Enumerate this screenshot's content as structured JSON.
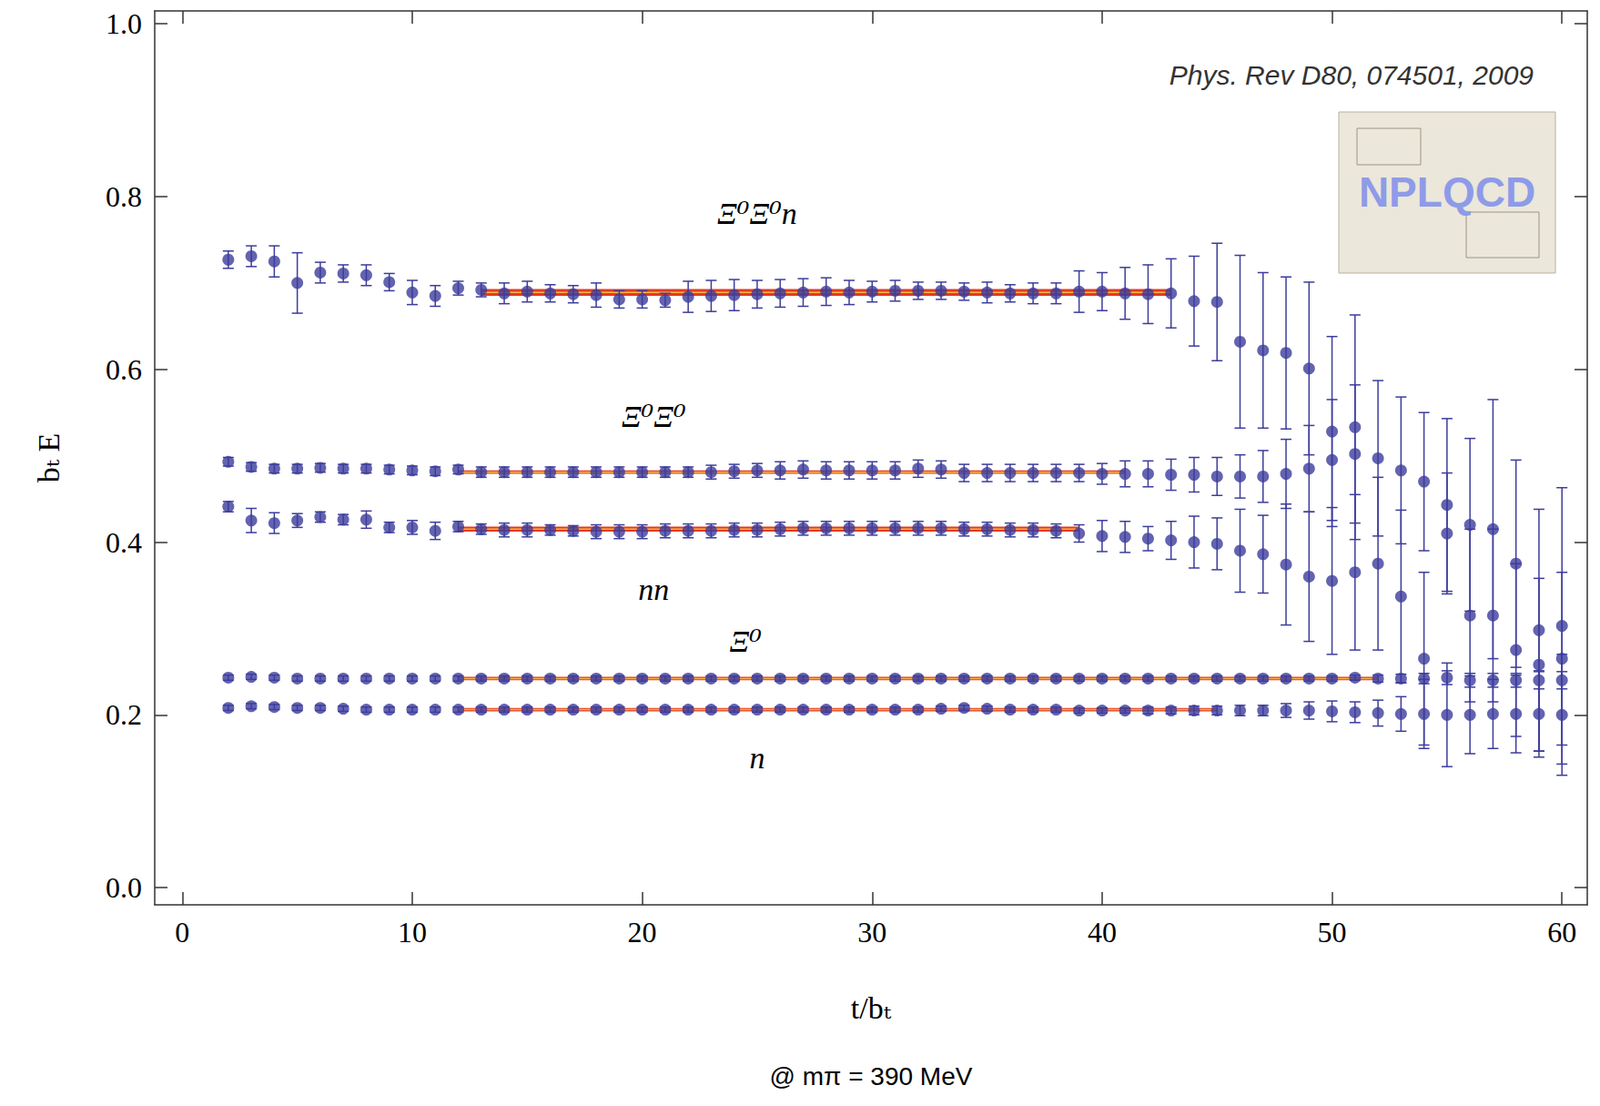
{
  "chart_data": {
    "type": "scatter",
    "title": "Phys. Rev D80, 074501, 2009",
    "subtitle": "@ mπ = 390 MeV",
    "logo": "NPLQCD",
    "xlabel": "t/bₜ",
    "ylabel": "bₜ E",
    "xlim": [
      -1.2,
      61.1
    ],
    "ylim": [
      -0.02,
      1.015
    ],
    "xticks": [
      0,
      10,
      20,
      30,
      40,
      50,
      60
    ],
    "yticks": [
      {
        "value": 0,
        "label": "0.0"
      },
      0.2,
      0.4,
      0.6,
      0.8,
      {
        "value": 1,
        "label": "1.0"
      }
    ],
    "grid": false,
    "marker": "circle",
    "annotations": [
      {
        "text": "Ξ⁰Ξ⁰n",
        "x": 25,
        "y": 0.78
      },
      {
        "text": "Ξ⁰Ξ⁰",
        "x": 20.5,
        "y": 0.545
      },
      {
        "text": "nn",
        "x": 20.5,
        "y": 0.345
      },
      {
        "text": "Ξ⁰",
        "x": 24.5,
        "y": 0.285
      },
      {
        "text": "n",
        "x": 25,
        "y": 0.15
      }
    ],
    "fits": [
      {
        "series": "Ξ⁰Ξ⁰n",
        "x_range": [
          13,
          43
        ],
        "value": 0.689,
        "error": 0.004,
        "color": "#e23b1f"
      },
      {
        "series": "Ξ⁰Ξ⁰",
        "x_range": [
          12,
          41
        ],
        "value": 0.481,
        "error": 0.002,
        "color": "#e23b1f"
      },
      {
        "series": "nn",
        "x_range": [
          12,
          39
        ],
        "value": 0.415,
        "error": 0.003,
        "color": "#e23b1f"
      },
      {
        "series": "Ξ⁰",
        "x_range": [
          12,
          52
        ],
        "value": 0.242,
        "error": 0.002,
        "color": "#e23b1f"
      },
      {
        "series": "n",
        "x_range": [
          12,
          45
        ],
        "value": 0.206,
        "error": 0.002,
        "color": "#e23b1f"
      }
    ],
    "series": [
      {
        "name": "Ξ⁰Ξ⁰n",
        "color": "#3c3c9c",
        "x": [
          2,
          3,
          4,
          5,
          6,
          7,
          8,
          9,
          10,
          11,
          12,
          13,
          14,
          15,
          16,
          17,
          18,
          19,
          20,
          21,
          22,
          23,
          24,
          25,
          26,
          27,
          28,
          29,
          30,
          31,
          32,
          33,
          34,
          35,
          36,
          37,
          38,
          39,
          40,
          41,
          42,
          43,
          44,
          45,
          46,
          47,
          48,
          49,
          50,
          51
        ],
        "values": [
          0.727,
          0.731,
          0.725,
          0.7,
          0.712,
          0.711,
          0.709,
          0.701,
          0.689,
          0.685,
          0.694,
          0.692,
          0.688,
          0.69,
          0.688,
          0.687,
          0.686,
          0.681,
          0.681,
          0.68,
          0.684,
          0.685,
          0.686,
          0.687,
          0.688,
          0.689,
          0.69,
          0.689,
          0.69,
          0.691,
          0.691,
          0.691,
          0.69,
          0.689,
          0.688,
          0.688,
          0.688,
          0.69,
          0.69,
          0.688,
          0.687,
          0.688,
          0.679,
          0.678,
          0.632,
          0.622,
          0.619,
          0.601,
          0.528,
          0.533
        ],
        "errors": [
          0.01,
          0.012,
          0.018,
          0.035,
          0.012,
          0.01,
          0.012,
          0.01,
          0.014,
          0.012,
          0.008,
          0.008,
          0.012,
          0.012,
          0.01,
          0.01,
          0.014,
          0.01,
          0.01,
          0.008,
          0.018,
          0.018,
          0.018,
          0.016,
          0.016,
          0.016,
          0.016,
          0.014,
          0.012,
          0.012,
          0.01,
          0.01,
          0.01,
          0.012,
          0.01,
          0.012,
          0.012,
          0.024,
          0.022,
          0.03,
          0.034,
          0.04,
          0.052,
          0.068,
          0.1,
          0.09,
          0.088,
          0.1,
          0.11,
          0.13
        ]
      },
      {
        "name": "Ξ⁰Ξ⁰",
        "color": "#3c3c9c",
        "x": [
          2,
          3,
          4,
          5,
          6,
          7,
          8,
          9,
          10,
          11,
          12,
          13,
          14,
          15,
          16,
          17,
          18,
          19,
          20,
          21,
          22,
          23,
          24,
          25,
          26,
          27,
          28,
          29,
          30,
          31,
          32,
          33,
          34,
          35,
          36,
          37,
          38,
          39,
          40,
          41,
          42,
          43,
          44,
          45,
          46,
          47,
          48,
          49,
          50,
          51,
          52,
          53,
          54,
          55,
          56,
          57,
          58,
          59,
          60
        ],
        "values": [
          0.493,
          0.487,
          0.485,
          0.485,
          0.486,
          0.485,
          0.485,
          0.484,
          0.483,
          0.482,
          0.484,
          0.481,
          0.481,
          0.481,
          0.481,
          0.481,
          0.481,
          0.481,
          0.481,
          0.481,
          0.481,
          0.481,
          0.482,
          0.483,
          0.483,
          0.484,
          0.483,
          0.483,
          0.483,
          0.483,
          0.485,
          0.484,
          0.48,
          0.48,
          0.48,
          0.48,
          0.48,
          0.48,
          0.479,
          0.479,
          0.479,
          0.478,
          0.478,
          0.476,
          0.476,
          0.476,
          0.479,
          0.485,
          0.495,
          0.502,
          0.497,
          0.483,
          0.47,
          0.443,
          0.42,
          0.415,
          0.375,
          0.298,
          0.303
        ],
        "errors": [
          0.005,
          0.005,
          0.005,
          0.005,
          0.005,
          0.005,
          0.005,
          0.005,
          0.005,
          0.005,
          0.005,
          0.006,
          0.006,
          0.006,
          0.006,
          0.006,
          0.006,
          0.006,
          0.006,
          0.006,
          0.006,
          0.008,
          0.008,
          0.008,
          0.01,
          0.01,
          0.01,
          0.01,
          0.01,
          0.01,
          0.01,
          0.01,
          0.01,
          0.01,
          0.01,
          0.01,
          0.01,
          0.01,
          0.012,
          0.015,
          0.015,
          0.018,
          0.02,
          0.022,
          0.025,
          0.03,
          0.04,
          0.05,
          0.07,
          0.08,
          0.09,
          0.085,
          0.08,
          0.1,
          0.1,
          0.15,
          0.12,
          0.14,
          0.16
        ]
      },
      {
        "name": "nn",
        "color": "#3c3c9c",
        "x": [
          2,
          3,
          4,
          5,
          6,
          7,
          8,
          9,
          10,
          11,
          12,
          13,
          14,
          15,
          16,
          17,
          18,
          19,
          20,
          21,
          22,
          23,
          24,
          25,
          26,
          27,
          28,
          29,
          30,
          31,
          32,
          33,
          34,
          35,
          36,
          37,
          38,
          39,
          40,
          41,
          42,
          43,
          44,
          45,
          46,
          47,
          48,
          49,
          50,
          51,
          52,
          53,
          54,
          55,
          56,
          57,
          58,
          59,
          60
        ],
        "values": [
          0.441,
          0.425,
          0.422,
          0.425,
          0.429,
          0.426,
          0.426,
          0.417,
          0.417,
          0.413,
          0.418,
          0.415,
          0.414,
          0.414,
          0.414,
          0.413,
          0.412,
          0.412,
          0.412,
          0.413,
          0.413,
          0.413,
          0.414,
          0.414,
          0.415,
          0.416,
          0.416,
          0.416,
          0.416,
          0.416,
          0.416,
          0.416,
          0.415,
          0.415,
          0.414,
          0.414,
          0.413,
          0.41,
          0.407,
          0.406,
          0.404,
          0.402,
          0.4,
          0.398,
          0.39,
          0.386,
          0.374,
          0.36,
          0.355,
          0.365,
          0.375,
          0.337,
          0.265,
          0.41,
          0.315,
          0.315,
          0.275,
          0.258,
          0.265
        ],
        "errors": [
          0.006,
          0.014,
          0.012,
          0.008,
          0.006,
          0.006,
          0.01,
          0.006,
          0.008,
          0.01,
          0.006,
          0.006,
          0.008,
          0.008,
          0.006,
          0.006,
          0.008,
          0.008,
          0.008,
          0.008,
          0.008,
          0.008,
          0.008,
          0.008,
          0.008,
          0.008,
          0.008,
          0.008,
          0.008,
          0.008,
          0.008,
          0.008,
          0.008,
          0.008,
          0.008,
          0.008,
          0.008,
          0.01,
          0.018,
          0.018,
          0.014,
          0.022,
          0.03,
          0.03,
          0.048,
          0.045,
          0.07,
          0.075,
          0.085,
          0.09,
          0.1,
          0.1,
          0.1,
          0.07,
          0.1,
          0.1,
          0.1,
          0.1,
          0.1
        ]
      },
      {
        "name": "Ξ⁰",
        "color": "#3c3c9c",
        "x": [
          2,
          3,
          4,
          5,
          6,
          7,
          8,
          9,
          10,
          11,
          12,
          13,
          14,
          15,
          16,
          17,
          18,
          19,
          20,
          21,
          22,
          23,
          24,
          25,
          26,
          27,
          28,
          29,
          30,
          31,
          32,
          33,
          34,
          35,
          36,
          37,
          38,
          39,
          40,
          41,
          42,
          43,
          44,
          45,
          46,
          47,
          48,
          49,
          50,
          51,
          52,
          53,
          54,
          55,
          56,
          57,
          58,
          59,
          60
        ],
        "values": [
          0.243,
          0.244,
          0.243,
          0.242,
          0.242,
          0.242,
          0.242,
          0.242,
          0.242,
          0.242,
          0.242,
          0.242,
          0.242,
          0.242,
          0.242,
          0.242,
          0.242,
          0.242,
          0.242,
          0.242,
          0.242,
          0.242,
          0.242,
          0.242,
          0.242,
          0.242,
          0.242,
          0.242,
          0.242,
          0.242,
          0.242,
          0.242,
          0.242,
          0.242,
          0.242,
          0.242,
          0.242,
          0.242,
          0.242,
          0.242,
          0.242,
          0.242,
          0.242,
          0.242,
          0.242,
          0.242,
          0.242,
          0.242,
          0.242,
          0.243,
          0.242,
          0.242,
          0.242,
          0.243,
          0.24,
          0.24,
          0.24,
          0.24,
          0.24
        ],
        "errors": [
          0.003,
          0.003,
          0.003,
          0.003,
          0.003,
          0.003,
          0.003,
          0.003,
          0.003,
          0.003,
          0.003,
          0.003,
          0.003,
          0.003,
          0.003,
          0.003,
          0.003,
          0.003,
          0.003,
          0.003,
          0.003,
          0.003,
          0.003,
          0.003,
          0.003,
          0.003,
          0.003,
          0.003,
          0.003,
          0.003,
          0.003,
          0.003,
          0.003,
          0.003,
          0.003,
          0.003,
          0.003,
          0.003,
          0.003,
          0.003,
          0.003,
          0.003,
          0.003,
          0.003,
          0.003,
          0.003,
          0.003,
          0.003,
          0.003,
          0.003,
          0.004,
          0.005,
          0.006,
          0.008,
          0.008,
          0.008,
          0.008,
          0.01,
          0.01
        ]
      },
      {
        "name": "n",
        "color": "#3c3c9c",
        "x": [
          2,
          3,
          4,
          5,
          6,
          7,
          8,
          9,
          10,
          11,
          12,
          13,
          14,
          15,
          16,
          17,
          18,
          19,
          20,
          21,
          22,
          23,
          24,
          25,
          26,
          27,
          28,
          29,
          30,
          31,
          32,
          33,
          34,
          35,
          36,
          37,
          38,
          39,
          40,
          41,
          42,
          43,
          44,
          45,
          46,
          47,
          48,
          49,
          50,
          51,
          52,
          53,
          54,
          55,
          56,
          57,
          58,
          59,
          60
        ],
        "values": [
          0.208,
          0.21,
          0.209,
          0.208,
          0.208,
          0.207,
          0.206,
          0.206,
          0.206,
          0.206,
          0.206,
          0.206,
          0.206,
          0.206,
          0.206,
          0.206,
          0.206,
          0.206,
          0.206,
          0.206,
          0.206,
          0.206,
          0.206,
          0.206,
          0.206,
          0.206,
          0.206,
          0.206,
          0.206,
          0.206,
          0.206,
          0.207,
          0.208,
          0.207,
          0.206,
          0.206,
          0.206,
          0.205,
          0.205,
          0.205,
          0.205,
          0.205,
          0.205,
          0.205,
          0.205,
          0.205,
          0.205,
          0.205,
          0.204,
          0.203,
          0.202,
          0.201,
          0.201,
          0.2,
          0.2,
          0.201,
          0.201,
          0.201,
          0.2
        ],
        "errors": [
          0.003,
          0.003,
          0.003,
          0.003,
          0.003,
          0.003,
          0.003,
          0.003,
          0.003,
          0.003,
          0.003,
          0.003,
          0.003,
          0.003,
          0.003,
          0.003,
          0.003,
          0.003,
          0.003,
          0.003,
          0.003,
          0.003,
          0.003,
          0.003,
          0.003,
          0.003,
          0.003,
          0.003,
          0.003,
          0.003,
          0.003,
          0.003,
          0.003,
          0.003,
          0.003,
          0.003,
          0.003,
          0.003,
          0.003,
          0.003,
          0.004,
          0.004,
          0.005,
          0.005,
          0.006,
          0.006,
          0.008,
          0.01,
          0.012,
          0.012,
          0.015,
          0.02,
          0.04,
          0.06,
          0.045,
          0.04,
          0.045,
          0.05,
          0.07
        ]
      }
    ]
  }
}
